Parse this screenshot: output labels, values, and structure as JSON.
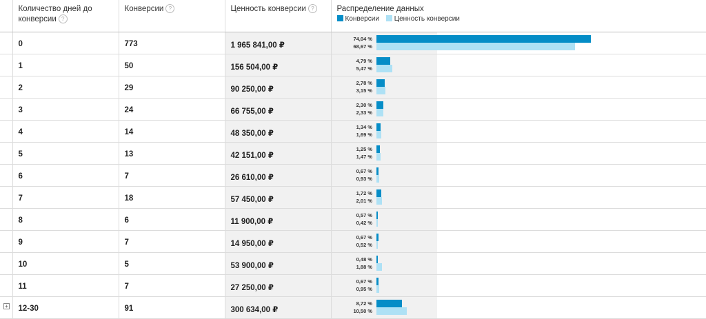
{
  "header": {
    "col_days": "Количество дней до конверсии",
    "col_conversions": "Конверсии",
    "col_value": "Ценность конверсии",
    "col_distribution": "Распределение данных",
    "help_icon": "?",
    "legend": {
      "conversions": "Конверсии",
      "value": "Ценность конверсии"
    }
  },
  "colors": {
    "conversions": "#058dc7",
    "value": "#aee1f5"
  },
  "expand_icon": "+",
  "rows": [
    {
      "days": "0",
      "conversions": "773",
      "value": "1 965 841,00 ₽",
      "conv_pct": "74,04 %",
      "value_pct": "68,67 %",
      "conv_frac": 0.7404,
      "value_frac": 0.6867
    },
    {
      "days": "1",
      "conversions": "50",
      "value": "156 504,00 ₽",
      "conv_pct": "4,79 %",
      "value_pct": "5,47 %",
      "conv_frac": 0.0479,
      "value_frac": 0.0547
    },
    {
      "days": "2",
      "conversions": "29",
      "value": "90 250,00 ₽",
      "conv_pct": "2,78 %",
      "value_pct": "3,15 %",
      "conv_frac": 0.0278,
      "value_frac": 0.0315
    },
    {
      "days": "3",
      "conversions": "24",
      "value": "66 755,00 ₽",
      "conv_pct": "2,30 %",
      "value_pct": "2,33 %",
      "conv_frac": 0.023,
      "value_frac": 0.0233
    },
    {
      "days": "4",
      "conversions": "14",
      "value": "48 350,00 ₽",
      "conv_pct": "1,34 %",
      "value_pct": "1,69 %",
      "conv_frac": 0.0134,
      "value_frac": 0.0169
    },
    {
      "days": "5",
      "conversions": "13",
      "value": "42 151,00 ₽",
      "conv_pct": "1,25 %",
      "value_pct": "1,47 %",
      "conv_frac": 0.0125,
      "value_frac": 0.0147
    },
    {
      "days": "6",
      "conversions": "7",
      "value": "26 610,00 ₽",
      "conv_pct": "0,67 %",
      "value_pct": "0,93 %",
      "conv_frac": 0.0067,
      "value_frac": 0.0093
    },
    {
      "days": "7",
      "conversions": "18",
      "value": "57 450,00 ₽",
      "conv_pct": "1,72 %",
      "value_pct": "2,01 %",
      "conv_frac": 0.0172,
      "value_frac": 0.0201
    },
    {
      "days": "8",
      "conversions": "6",
      "value": "11 900,00 ₽",
      "conv_pct": "0,57 %",
      "value_pct": "0,42 %",
      "conv_frac": 0.0057,
      "value_frac": 0.0042
    },
    {
      "days": "9",
      "conversions": "7",
      "value": "14 950,00 ₽",
      "conv_pct": "0,67 %",
      "value_pct": "0,52 %",
      "conv_frac": 0.0067,
      "value_frac": 0.0052
    },
    {
      "days": "10",
      "conversions": "5",
      "value": "53 900,00 ₽",
      "conv_pct": "0,48 %",
      "value_pct": "1,88 %",
      "conv_frac": 0.0048,
      "value_frac": 0.0188
    },
    {
      "days": "11",
      "conversions": "7",
      "value": "27 250,00 ₽",
      "conv_pct": "0,67 %",
      "value_pct": "0,95 %",
      "conv_frac": 0.0067,
      "value_frac": 0.0095
    },
    {
      "days": "12-30",
      "conversions": "91",
      "value": "300 634,00 ₽",
      "conv_pct": "8,72 %",
      "value_pct": "10,50 %",
      "conv_frac": 0.0872,
      "value_frac": 0.105,
      "expandable": true
    }
  ]
}
